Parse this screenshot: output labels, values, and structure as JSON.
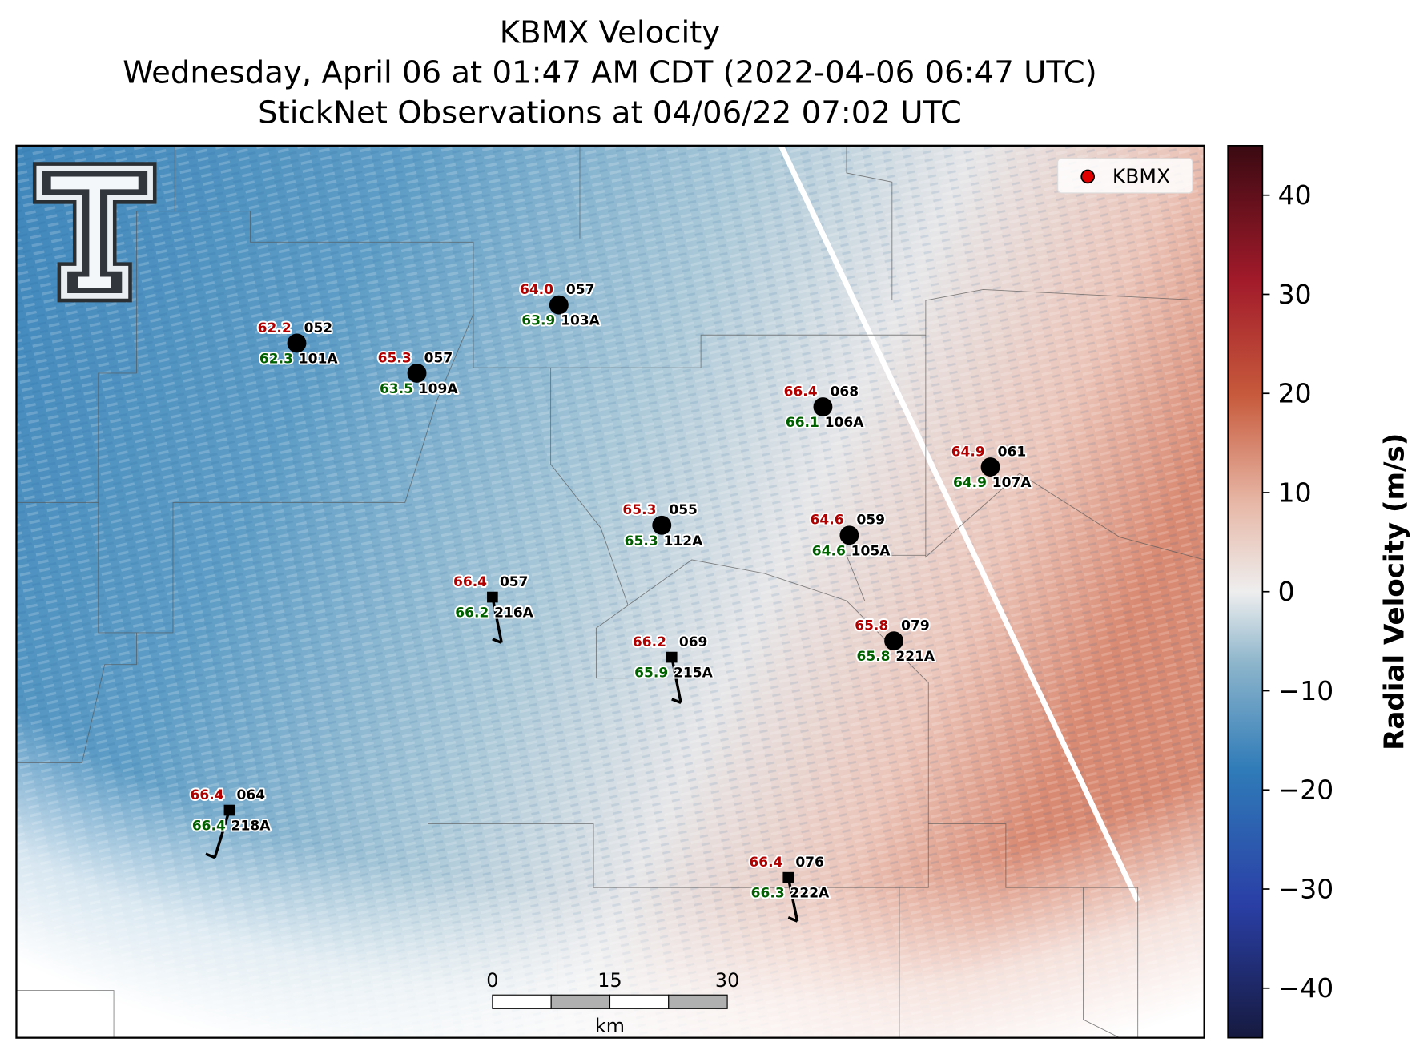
{
  "title": [
    "KBMX Velocity",
    "Wednesday, April 06 at 01:47 AM CDT (2022-04-06 06:47 UTC)",
    "StickNet Observations at 04/06/22 07:02 UTC"
  ],
  "legend": "KBMX",
  "stations": [
    {
      "temperature": "64.0",
      "dewpoint": "63.9",
      "code": "057",
      "id": "103A",
      "marker": "circle"
    },
    {
      "temperature": "62.2",
      "dewpoint": "62.3",
      "code": "052",
      "id": "101A",
      "marker": "circle"
    },
    {
      "temperature": "65.3",
      "dewpoint": "63.5",
      "code": "057",
      "id": "109A",
      "marker": "circle"
    },
    {
      "temperature": "66.4",
      "dewpoint": "66.1",
      "code": "068",
      "id": "106A",
      "marker": "circle"
    },
    {
      "temperature": "64.9",
      "dewpoint": "64.9",
      "code": "061",
      "id": "107A",
      "marker": "circle"
    },
    {
      "temperature": "65.3",
      "dewpoint": "65.3",
      "code": "055",
      "id": "112A",
      "marker": "circle"
    },
    {
      "temperature": "64.6",
      "dewpoint": "64.6",
      "code": "059",
      "id": "105A",
      "marker": "circle"
    },
    {
      "temperature": "66.4",
      "dewpoint": "66.2",
      "code": "057",
      "id": "216A",
      "marker": "square"
    },
    {
      "temperature": "66.2",
      "dewpoint": "65.9",
      "code": "069",
      "id": "215A",
      "marker": "square"
    },
    {
      "temperature": "65.8",
      "dewpoint": "65.8",
      "code": "079",
      "id": "221A",
      "marker": "circle"
    },
    {
      "temperature": "66.4",
      "dewpoint": "66.4",
      "code": "064",
      "id": "218A",
      "marker": "square"
    },
    {
      "temperature": "66.4",
      "dewpoint": "66.3",
      "code": "076",
      "id": "222A",
      "marker": "square"
    }
  ],
  "scale_bar": {
    "ticks": [
      0,
      15,
      30
    ],
    "unit": "km"
  },
  "colorbar": {
    "label": "Radial Velocity (m/s)",
    "lim": [
      -45,
      45
    ],
    "ticks": [
      40,
      30,
      20,
      10,
      0,
      {
        "value": -10,
        "label": "−10"
      },
      {
        "value": -20,
        "label": "−20"
      },
      {
        "value": -30,
        "label": "−30"
      },
      {
        "value": -40,
        "label": "−40"
      }
    ]
  }
}
